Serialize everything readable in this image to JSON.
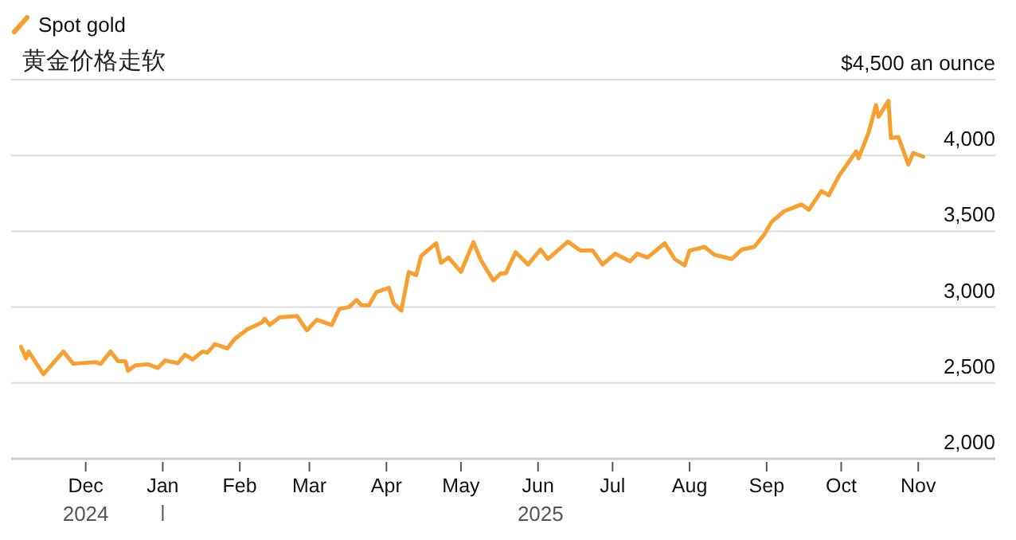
{
  "chart_data": {
    "type": "line",
    "title": "黄金价格走软",
    "legend": "top left",
    "grid": "y",
    "line_style": "solid",
    "marker": "none",
    "xlim": [
      "2024-11-01",
      "2025-12-02"
    ],
    "xticks": [
      {
        "value": "2024-12-01",
        "label": "Dec"
      },
      {
        "value": "2025-01-01",
        "label": "Jan"
      },
      {
        "value": "2025-02-01",
        "label": "Feb"
      },
      {
        "value": "2025-03-01",
        "label": "Mar"
      },
      {
        "value": "2025-04-01",
        "label": "Apr"
      },
      {
        "value": "2025-05-01",
        "label": "May"
      },
      {
        "value": "2025-06-01",
        "label": "Jun"
      },
      {
        "value": "2025-07-01",
        "label": "Jul"
      },
      {
        "value": "2025-08-01",
        "label": "Aug"
      },
      {
        "value": "2025-09-01",
        "label": "Sep"
      },
      {
        "value": "2025-10-01",
        "label": "Oct"
      },
      {
        "value": "2025-11-01",
        "label": "Nov"
      }
    ],
    "ylim": [
      2000,
      4500
    ],
    "yticks": [
      {
        "value": 2000,
        "label": "2,000"
      },
      {
        "value": 2500,
        "label": "2,500"
      },
      {
        "value": 3000,
        "label": "3,000"
      },
      {
        "value": 3500,
        "label": "3,500"
      },
      {
        "value": 4000,
        "label": "4,000"
      },
      {
        "value": 4500,
        "label": "$4,500 an ounce"
      }
    ],
    "annotations": [
      "2024",
      "2025"
    ],
    "x": [
      "2024-11-05",
      "2024-11-07",
      "2024-11-08",
      "2024-11-14",
      "2024-11-22",
      "2024-11-26",
      "2024-12-05",
      "2024-12-07",
      "2024-12-11",
      "2024-12-14",
      "2024-12-17",
      "2024-12-18",
      "2024-12-21",
      "2024-12-26",
      "2024-12-30",
      "2025-01-02",
      "2025-01-07",
      "2025-01-10",
      "2025-01-13",
      "2025-01-17",
      "2025-01-19",
      "2025-01-22",
      "2025-01-27",
      "2025-01-30",
      "2025-02-04",
      "2025-02-10",
      "2025-02-11",
      "2025-02-13",
      "2025-02-17",
      "2025-02-24",
      "2025-02-28",
      "2025-03-04",
      "2025-03-10",
      "2025-03-13",
      "2025-03-17",
      "2025-03-20",
      "2025-03-22",
      "2025-03-25",
      "2025-03-28",
      "2025-04-02",
      "2025-04-04",
      "2025-04-07",
      "2025-04-10",
      "2025-04-13",
      "2025-04-15",
      "2025-04-21",
      "2025-04-23",
      "2025-04-26",
      "2025-05-01",
      "2025-05-06",
      "2025-05-09",
      "2025-05-14",
      "2025-05-17",
      "2025-05-19",
      "2025-05-23",
      "2025-05-28",
      "2025-06-02",
      "2025-06-05",
      "2025-06-13",
      "2025-06-18",
      "2025-06-23",
      "2025-06-27",
      "2025-07-02",
      "2025-07-08",
      "2025-07-11",
      "2025-07-15",
      "2025-07-22",
      "2025-07-26",
      "2025-07-30",
      "2025-08-01",
      "2025-08-07",
      "2025-08-11",
      "2025-08-18",
      "2025-08-22",
      "2025-08-27",
      "2025-08-31",
      "2025-09-03",
      "2025-09-08",
      "2025-09-15",
      "2025-09-18",
      "2025-09-23",
      "2025-09-26",
      "2025-09-30",
      "2025-10-07",
      "2025-10-08",
      "2025-10-12",
      "2025-10-15",
      "2025-10-16",
      "2025-10-20",
      "2025-10-21",
      "2025-10-24",
      "2025-10-28",
      "2025-10-30",
      "2025-11-03"
    ],
    "series": [
      {
        "name": "Spot gold",
        "color": "#f7a030",
        "values": [
          2738,
          2662,
          2707,
          2557,
          2707,
          2627,
          2637,
          2625,
          2707,
          2644,
          2644,
          2581,
          2616,
          2623,
          2599,
          2648,
          2630,
          2686,
          2655,
          2707,
          2700,
          2756,
          2728,
          2791,
          2854,
          2900,
          2924,
          2882,
          2932,
          2942,
          2847,
          2917,
          2882,
          2987,
          3001,
          3047,
          3012,
          3012,
          3100,
          3127,
          3022,
          2977,
          3232,
          3211,
          3337,
          3421,
          3292,
          3327,
          3232,
          3428,
          3310,
          3176,
          3222,
          3222,
          3362,
          3281,
          3380,
          3317,
          3432,
          3373,
          3373,
          3281,
          3352,
          3302,
          3352,
          3327,
          3421,
          3317,
          3275,
          3373,
          3397,
          3345,
          3317,
          3380,
          3397,
          3478,
          3562,
          3632,
          3677,
          3642,
          3765,
          3737,
          3863,
          4027,
          3982,
          4150,
          4332,
          4255,
          4360,
          4115,
          4122,
          3940,
          4017,
          3992
        ]
      }
    ]
  }
}
